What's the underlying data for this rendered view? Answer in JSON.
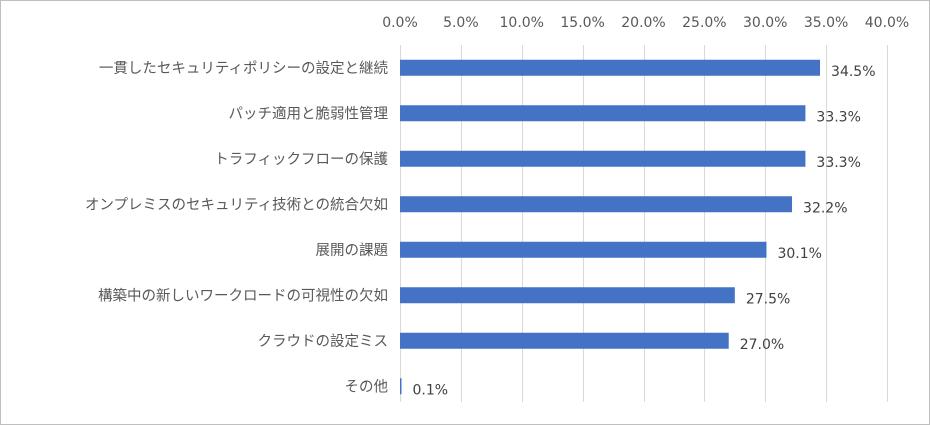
{
  "chart_data": {
    "type": "bar",
    "orientation": "horizontal",
    "title": "",
    "xlabel": "",
    "ylabel": "",
    "xlim": [
      0,
      40
    ],
    "tick_step": 5,
    "tick_labels": [
      "0.0%",
      "5.0%",
      "10.0%",
      "15.0%",
      "20.0%",
      "25.0%",
      "30.0%",
      "35.0%",
      "40.0%"
    ],
    "x_axis_position": "top",
    "grid": true,
    "legend": "none",
    "bar_color": "#4472c4",
    "categories": [
      "一貫したセキュリティポリシーの設定と継続",
      "パッチ適用と脆弱性管理",
      "トラフィックフローの保護",
      "オンプレミスのセキュリティ技術との統合欠如",
      "展開の課題",
      "構築中の新しいワークロードの可視性の欠如",
      "クラウドの設定ミス",
      "その他"
    ],
    "values": [
      34.5,
      33.3,
      33.3,
      32.2,
      30.1,
      27.5,
      27.0,
      0.1
    ],
    "data_labels": [
      "34.5%",
      "33.3%",
      "33.3%",
      "32.2%",
      "30.1%",
      "27.5%",
      "27.0%",
      "0.1%"
    ]
  }
}
